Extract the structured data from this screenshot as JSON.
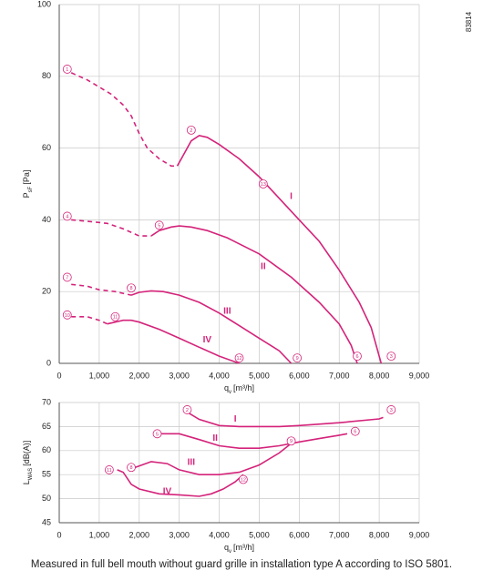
{
  "figure_id": "83814",
  "footer": "Measured in full bell mouth without guard grille in installation type A according to ISO 5801.",
  "chart_data": [
    {
      "type": "line",
      "ylabel": {
        "text": "P",
        "sub": "sF",
        "unit": "[Pa]"
      },
      "xlabel": {
        "text": "q",
        "sub": "v",
        "unit": "[m³/h]"
      },
      "xlim": [
        0,
        9000
      ],
      "ylim": [
        0,
        100
      ],
      "xticks": [
        0,
        {
          "value": 1000,
          "label": "1,000"
        },
        {
          "value": 2000,
          "label": "2,000"
        },
        {
          "value": 3000,
          "label": "3,000"
        },
        {
          "value": 4000,
          "label": "4,000"
        },
        {
          "value": 5000,
          "label": "5,000"
        },
        {
          "value": 6000,
          "label": "6,000"
        },
        {
          "value": 7000,
          "label": "7,000"
        },
        {
          "value": 8000,
          "label": "8,000"
        },
        {
          "value": 9000,
          "label": "9,000"
        }
      ],
      "yticks": [
        0,
        20,
        40,
        60,
        80,
        100
      ],
      "grid": true,
      "series": [
        {
          "color": "#d4237a",
          "dashed": true,
          "x": [
            300,
            700,
            1000,
            1300,
            1600,
            1800,
            2000,
            2200,
            2500,
            2800,
            2950
          ],
          "values": [
            81,
            79,
            77,
            75,
            72,
            69,
            64,
            60,
            57,
            55,
            55
          ]
        },
        {
          "name": "I",
          "color": "#d4237a",
          "dashed": false,
          "x": [
            2950,
            3100,
            3300,
            3500,
            3700,
            4000,
            4500,
            5000,
            5500,
            6000,
            6500,
            7000,
            7500,
            7800,
            8050
          ],
          "values": [
            55,
            58,
            62,
            63.5,
            63,
            61,
            57,
            52,
            46,
            40,
            34,
            26,
            17,
            10,
            0
          ]
        },
        {
          "color": "#d4237a",
          "dashed": true,
          "x": [
            300,
            800,
            1200,
            1600,
            2000,
            2300
          ],
          "values": [
            40,
            39.5,
            39,
            37.5,
            35.5,
            35.5
          ]
        },
        {
          "name": "II",
          "color": "#d4237a",
          "dashed": false,
          "x": [
            2300,
            2500,
            2800,
            3000,
            3300,
            3700,
            4200,
            5000,
            5800,
            6500,
            7000,
            7300,
            7450
          ],
          "values": [
            35.5,
            37,
            38,
            38.3,
            38,
            37,
            35,
            30.5,
            24,
            17,
            11,
            5,
            0
          ]
        },
        {
          "color": "#d4237a",
          "dashed": true,
          "x": [
            300,
            700,
            1000,
            1400,
            1800
          ],
          "values": [
            22,
            21.5,
            20.5,
            20,
            19
          ]
        },
        {
          "name": "III",
          "color": "#d4237a",
          "dashed": false,
          "x": [
            1800,
            2000,
            2300,
            2600,
            3000,
            3500,
            4000,
            4500,
            5000,
            5500,
            5800
          ],
          "values": [
            19,
            19.8,
            20.2,
            20,
            19,
            17,
            14,
            10.5,
            7,
            3.5,
            0
          ]
        },
        {
          "color": "#d4237a",
          "dashed": true,
          "x": [
            300,
            700,
            1000,
            1200
          ],
          "values": [
            13,
            13,
            12,
            11
          ]
        },
        {
          "name": "IV",
          "color": "#d4237a",
          "dashed": false,
          "x": [
            1200,
            1400,
            1600,
            1800,
            2000,
            2500,
            3000,
            3500,
            4000,
            4500
          ],
          "values": [
            11,
            11.5,
            12,
            12,
            11.5,
            9.5,
            7,
            4.5,
            2,
            0
          ]
        }
      ],
      "annotations": [
        {
          "text": "1",
          "x": 200,
          "y": 82
        },
        {
          "text": "2",
          "x": 3300,
          "y": 65
        },
        {
          "text": "3",
          "x": 8300,
          "y": 2
        },
        {
          "text": "4",
          "x": 200,
          "y": 41
        },
        {
          "text": "5",
          "x": 2500,
          "y": 38.5
        },
        {
          "text": "6",
          "x": 7450,
          "y": 2
        },
        {
          "text": "7",
          "x": 200,
          "y": 24
        },
        {
          "text": "8",
          "x": 1800,
          "y": 21
        },
        {
          "text": "9",
          "x": 5950,
          "y": 1.5
        },
        {
          "text": "10",
          "x": 200,
          "y": 13.5
        },
        {
          "text": "11",
          "x": 1400,
          "y": 13
        },
        {
          "text": "12",
          "x": 4500,
          "y": 1.5
        },
        {
          "text": "13",
          "x": 5100,
          "y": 50
        }
      ]
    },
    {
      "type": "line",
      "ylabel": {
        "text": "L",
        "sub": "WAS",
        "unit": "[dB(A)]"
      },
      "xlabel": {
        "text": "q",
        "sub": "v",
        "unit": "[m³/h]"
      },
      "xlim": [
        0,
        9000
      ],
      "ylim": [
        45,
        70
      ],
      "xticks": [
        0,
        {
          "value": 1000,
          "label": "1,000"
        },
        {
          "value": 2000,
          "label": "2,000"
        },
        {
          "value": 3000,
          "label": "3,000"
        },
        {
          "value": 4000,
          "label": "4,000"
        },
        {
          "value": 5000,
          "label": "5,000"
        },
        {
          "value": 6000,
          "label": "6,000"
        },
        {
          "value": 7000,
          "label": "7,000"
        },
        {
          "value": 8000,
          "label": "8,000"
        },
        {
          "value": 9000,
          "label": "9,000"
        }
      ],
      "yticks": [
        45,
        50,
        55,
        60,
        65,
        70
      ],
      "grid": true,
      "series": [
        {
          "name": "I",
          "color": "#d4237a",
          "dashed": false,
          "x": [
            3200,
            3500,
            4000,
            4500,
            5000,
            5500,
            6000,
            7000,
            8000,
            8100
          ],
          "values": [
            68,
            66.5,
            65.2,
            65,
            65,
            65,
            65.2,
            65.8,
            66.6,
            66.9
          ]
        },
        {
          "name": "II",
          "color": "#d4237a",
          "dashed": false,
          "x": [
            2500,
            3000,
            3500,
            4000,
            4500,
            5000,
            5500,
            6000,
            6500,
            7000,
            7200
          ],
          "values": [
            63.5,
            63.5,
            62.3,
            61,
            60.5,
            60.5,
            61,
            61.8,
            62.5,
            63.2,
            63.5
          ]
        },
        {
          "name": "III",
          "color": "#d4237a",
          "dashed": false,
          "x": [
            1900,
            2300,
            2700,
            3000,
            3500,
            4000,
            4500,
            5000,
            5500,
            5800
          ],
          "values": [
            56.5,
            57.7,
            57.3,
            56,
            55,
            55,
            55.5,
            57,
            59.5,
            61.5
          ]
        },
        {
          "name": "IV",
          "color": "#d4237a",
          "dashed": false,
          "x": [
            1450,
            1600,
            1800,
            2000,
            2500,
            3000,
            3500,
            3800,
            4100,
            4400,
            4600
          ],
          "values": [
            56,
            55.5,
            53,
            52,
            51,
            50.8,
            50.5,
            51,
            52,
            53.5,
            55
          ]
        }
      ],
      "annotations": [
        {
          "text": "2",
          "x": 3200,
          "y": 68.5
        },
        {
          "text": "3",
          "x": 8300,
          "y": 68.5
        },
        {
          "text": "5",
          "x": 2450,
          "y": 63.5
        },
        {
          "text": "6",
          "x": 7400,
          "y": 64
        },
        {
          "text": "8",
          "x": 1800,
          "y": 56.5
        },
        {
          "text": "9",
          "x": 5800,
          "y": 62
        },
        {
          "text": "11",
          "x": 1250,
          "y": 56
        },
        {
          "text": "12",
          "x": 4600,
          "y": 54
        }
      ]
    }
  ]
}
